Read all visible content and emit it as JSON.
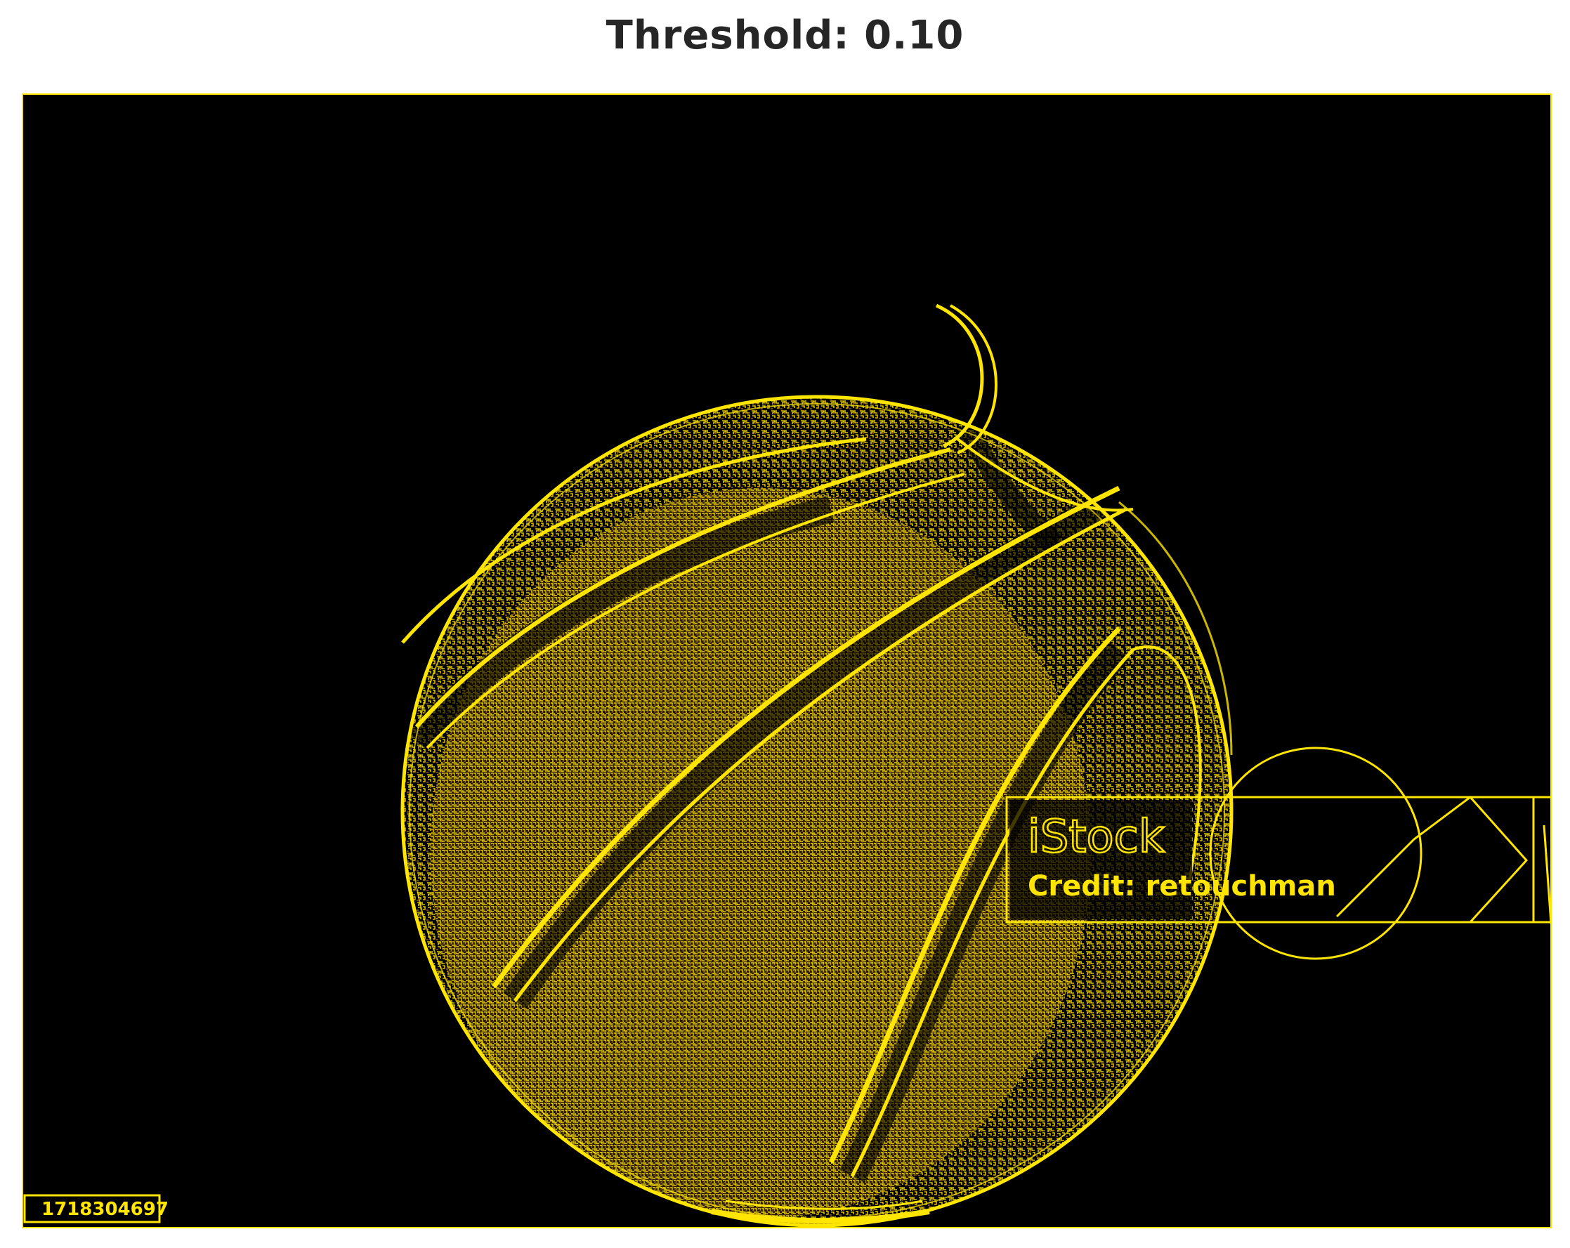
{
  "title": "Threshold: 0.10",
  "image": {
    "description_icon": "edge-map-basketball",
    "watermark": {
      "brand": "iStock",
      "credit": "Credit: retouchman",
      "id_text": "1718304697"
    },
    "colors": {
      "background": "#000000",
      "edge": "#ffe500",
      "edge_dim": "#c9a10a",
      "speckle": "#b86a2a"
    }
  }
}
